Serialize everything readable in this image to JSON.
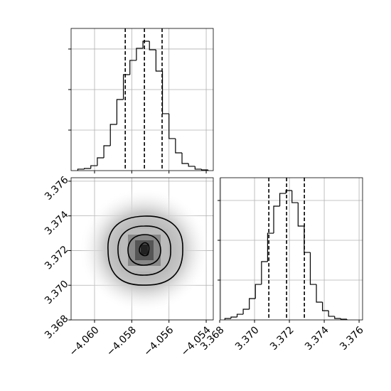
{
  "chart_data": [
    {
      "type": "histogram",
      "bins": [
        -4.0609,
        -4.06055,
        -4.0602,
        -4.05985,
        -4.0595,
        -4.05915,
        -4.0588,
        -4.05845,
        -4.0581,
        -4.05775,
        -4.0574,
        -4.05705,
        -4.0567,
        -4.05635,
        -4.056,
        -4.05565,
        -4.0553,
        -4.05495,
        -4.0546,
        -4.05425,
        -4.0539
      ],
      "values": [
        18,
        26,
        61,
        158,
        307,
        570,
        877,
        1184,
        1360,
        1509,
        1596,
        1491,
        1228,
        702,
        395,
        219,
        88,
        53,
        18,
        9
      ],
      "quantiles": [
        -4.05835,
        -4.05732,
        -4.05637
      ],
      "xlim": [
        -4.06126,
        -4.05362
      ],
      "xticks": [
        -4.06,
        -4.058,
        -4.056,
        -4.054
      ],
      "ylim": [
        0,
        1754
      ],
      "yticks": [
        500,
        1000,
        1500
      ],
      "grid": true,
      "color": "#000000"
    },
    {
      "type": "hist2d",
      "xlim": [
        -4.06126,
        -4.05362
      ],
      "xticks": [
        {
          "value": -4.06,
          "label": "−4.060"
        },
        {
          "value": -4.058,
          "label": "−4.058"
        },
        {
          "value": -4.056,
          "label": "−4.056"
        },
        {
          "value": -4.054,
          "label": "−4.054"
        }
      ],
      "ylim": [
        3.368,
        3.3762
      ],
      "yticks": [
        3.368,
        {
          "value": 3.37,
          "label": "3.370"
        },
        3.372,
        3.374,
        3.376
      ],
      "grid": true
    },
    {
      "type": "histogram",
      "bins": [
        3.3683,
        3.36865,
        3.369,
        3.36935,
        3.3697,
        3.37005,
        3.3704,
        3.37075,
        3.3711,
        3.37145,
        3.3718,
        3.37215,
        3.3725,
        3.37285,
        3.3732,
        3.37355,
        3.3739,
        3.37425,
        3.3746,
        3.37495,
        3.3753
      ],
      "values": [
        18,
        36,
        71,
        134,
        268,
        446,
        732,
        1089,
        1429,
        1589,
        1625,
        1473,
        1179,
        848,
        446,
        223,
        116,
        45,
        18,
        9
      ],
      "quantiles": [
        3.37082,
        3.37184,
        3.37286
      ],
      "xlim": [
        3.36804,
        3.3762
      ],
      "xticks": [
        3.368,
        {
          "value": 3.37,
          "label": "3.370"
        },
        3.372,
        3.374,
        3.376
      ],
      "ylim": [
        0,
        1786
      ],
      "yticks": [
        500,
        1000,
        1500
      ],
      "grid": true,
      "color": "#000000"
    }
  ]
}
